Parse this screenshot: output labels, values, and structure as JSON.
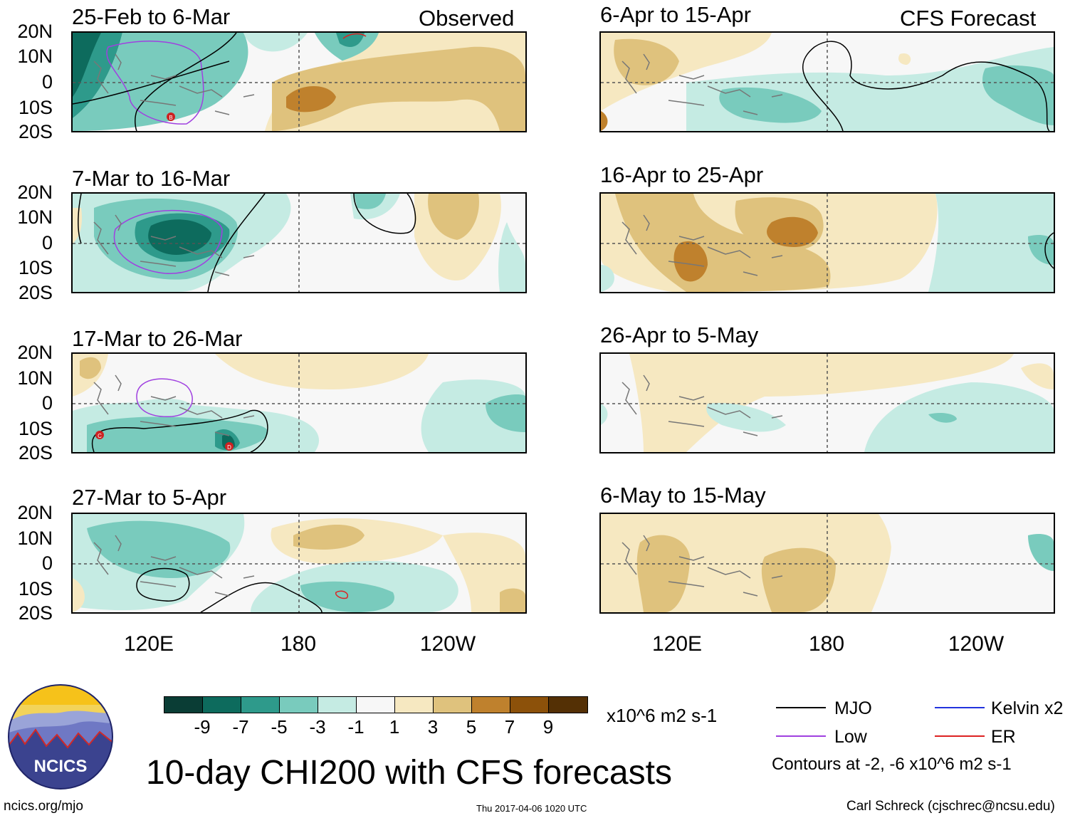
{
  "panels": [
    {
      "id": "obs1",
      "title": "25-Feb to 6-Mar",
      "label": "Observed"
    },
    {
      "id": "obs2",
      "title": "7-Mar to 16-Mar"
    },
    {
      "id": "obs3",
      "title": "17-Mar to 26-Mar"
    },
    {
      "id": "obs4",
      "title": "27-Mar to 5-Apr"
    },
    {
      "id": "fc1",
      "title": "6-Apr to 15-Apr",
      "label": "CFS Forecast"
    },
    {
      "id": "fc2",
      "title": "16-Apr to 25-Apr"
    },
    {
      "id": "fc3",
      "title": "26-Apr to 5-May"
    },
    {
      "id": "fc4",
      "title": "6-May to 15-May"
    }
  ],
  "latitude_labels": [
    "20N",
    "10N",
    "0",
    "10S",
    "20S"
  ],
  "longitude_labels": [
    "120E",
    "180",
    "120W"
  ],
  "colorbar": {
    "colors": [
      "#0a3d35",
      "#0d6b5d",
      "#2e9a8b",
      "#79cbbd",
      "#c5ebe3",
      "#f7f7f7",
      "#f6e8c1",
      "#dfc27d",
      "#bf812d",
      "#8c510a",
      "#543005"
    ],
    "ticks": [
      "-9",
      "-7",
      "-5",
      "-3",
      "-1",
      "1",
      "3",
      "5",
      "7",
      "9"
    ],
    "units": "x10^6 m2 s-1"
  },
  "legend": {
    "items": [
      {
        "label": "MJO",
        "color": "#000000"
      },
      {
        "label": "Kelvin x2",
        "color": "#2233dd"
      },
      {
        "label": "Low",
        "color": "#a040e0"
      },
      {
        "label": "ER",
        "color": "#dd2222"
      }
    ],
    "contours_note": "Contours at -2, -6 x10^6 m2 s-1"
  },
  "title": "10-day CHI200 with CFS forecasts",
  "logo_text": "NCICS",
  "footer": {
    "url": "ncics.org/mjo",
    "timestamp": "Thu 2017-04-06 1020 UTC",
    "author": "Carl Schreck (cjschrec@ncsu.edu)"
  },
  "storm_markers": [
    "B",
    "C",
    "D"
  ]
}
